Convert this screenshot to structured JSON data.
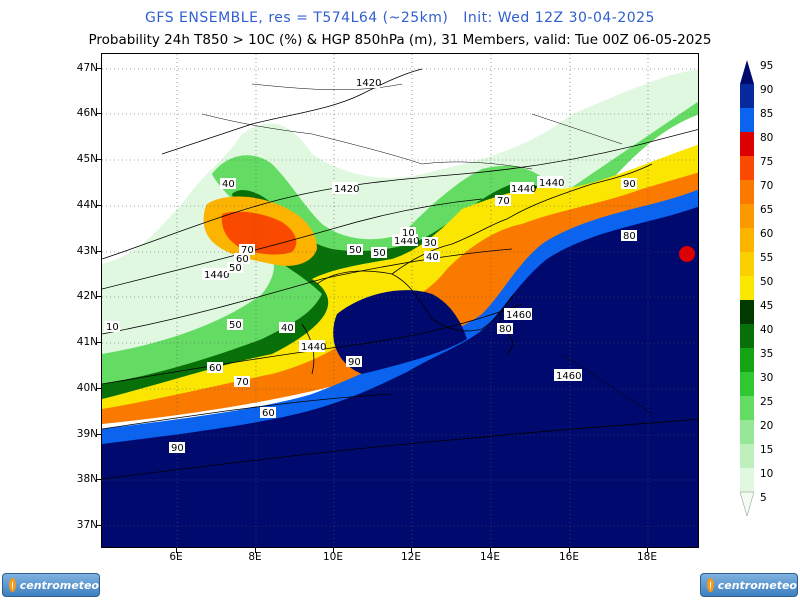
{
  "title_line1": "GFS ENSEMBLE, res = T574L64 (~25km)   Init: Wed 12Z 30-04-2025",
  "title_line2": "Probability 24h T850 > 10C (%) & HGP 850hPa (m), 31 Members, valid: Tue 00Z 06-05-2025",
  "lat_labels": [
    "47N",
    "46N",
    "45N",
    "44N",
    "43N",
    "42N",
    "41N",
    "40N",
    "39N",
    "38N",
    "37N"
  ],
  "lon_labels": [
    "6E",
    "8E",
    "10E",
    "12E",
    "14E",
    "16E",
    "18E"
  ],
  "colorbar": {
    "levels": [
      "95",
      "90",
      "85",
      "80",
      "75",
      "70",
      "65",
      "60",
      "55",
      "50",
      "45",
      "40",
      "35",
      "30",
      "25",
      "20",
      "15",
      "10",
      "5"
    ],
    "colors": [
      "#000a6e",
      "#062a9e",
      "#0a64f0",
      "#dc0000",
      "#fa4a00",
      "#fa7a00",
      "#fc9800",
      "#fcb400",
      "#fcd000",
      "#fae600",
      "#003a00",
      "#087008",
      "#12a412",
      "#30c830",
      "#64dc64",
      "#96e896",
      "#bef0be",
      "#e0f8e0",
      "#f2fcf2"
    ]
  },
  "contour_labels": [
    {
      "text": "1420"
    },
    {
      "text": "1420"
    },
    {
      "text": "1440"
    },
    {
      "text": "1440"
    },
    {
      "text": "1440"
    },
    {
      "text": "1440"
    },
    {
      "text": "1440"
    },
    {
      "text": "1460"
    },
    {
      "text": "1460"
    },
    {
      "text": "1460"
    }
  ],
  "prob_labels": [
    "40",
    "70",
    "60",
    "50",
    "50",
    "40",
    "60",
    "70",
    "60",
    "90",
    "10",
    "50",
    "30",
    "40",
    "70",
    "50",
    "80",
    "90",
    "90",
    "80",
    "50",
    "10"
  ],
  "brand": "centrometeo"
}
